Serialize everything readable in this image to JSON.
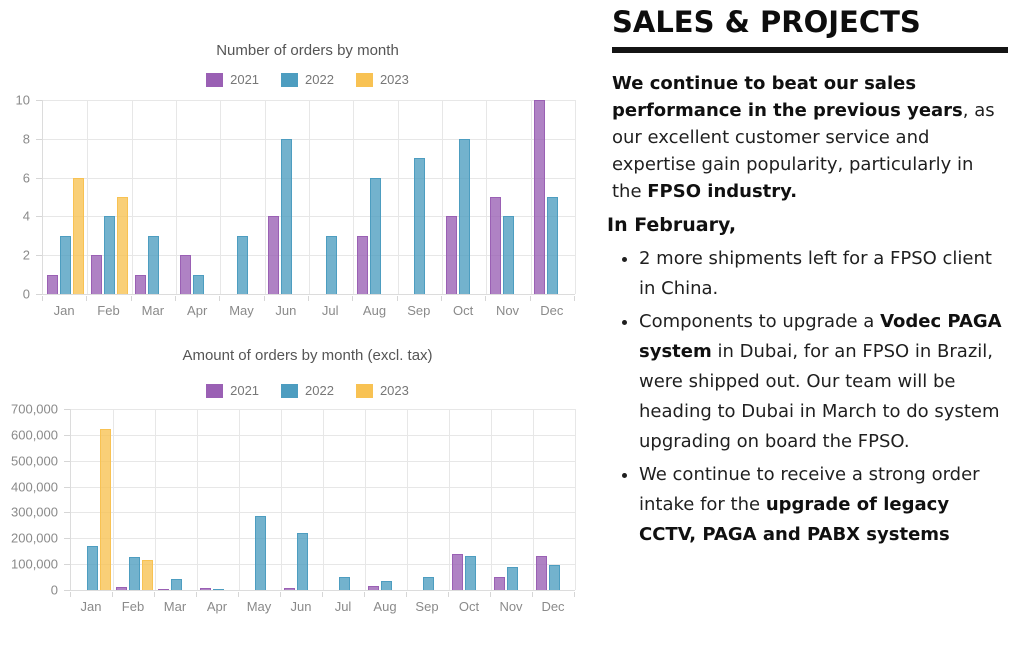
{
  "chart_data": [
    {
      "type": "bar",
      "title": "Number of orders by month",
      "categories": [
        "Jan",
        "Feb",
        "Mar",
        "Apr",
        "May",
        "Jun",
        "Jul",
        "Aug",
        "Sep",
        "Oct",
        "Nov",
        "Dec"
      ],
      "series": [
        {
          "name": "2021",
          "color": "#9a60b4",
          "values": [
            1,
            2,
            1,
            2,
            0,
            4,
            0,
            3,
            0,
            4,
            5,
            10
          ]
        },
        {
          "name": "2022",
          "color": "#4d9dc0",
          "values": [
            3,
            4,
            3,
            1,
            3,
            8,
            3,
            6,
            7,
            8,
            4,
            5
          ]
        },
        {
          "name": "2023",
          "color": "#f8c253",
          "values": [
            6,
            5,
            0,
            0,
            0,
            0,
            0,
            0,
            0,
            0,
            0,
            0
          ]
        }
      ],
      "ylim": [
        0,
        10
      ],
      "y_ticks": [
        {
          "value": 10,
          "label": "10"
        },
        {
          "value": 8,
          "label": "8"
        },
        {
          "value": 6,
          "label": "6"
        },
        {
          "value": 4,
          "label": "4"
        },
        {
          "value": 2,
          "label": "2"
        },
        {
          "value": 0,
          "label": "0"
        }
      ],
      "grid": true,
      "legend_position": "top"
    },
    {
      "type": "bar",
      "title": "Amount of orders by month (excl. tax)",
      "categories": [
        "Jan",
        "Feb",
        "Mar",
        "Apr",
        "May",
        "Jun",
        "Jul",
        "Aug",
        "Sep",
        "Oct",
        "Nov",
        "Dec"
      ],
      "series": [
        {
          "name": "2021",
          "color": "#9a60b4",
          "values": [
            0,
            10000,
            3000,
            9000,
            0,
            8000,
            0,
            14000,
            0,
            140000,
            52000,
            130000
          ]
        },
        {
          "name": "2022",
          "color": "#4d9dc0",
          "values": [
            170000,
            127000,
            43000,
            2000,
            287000,
            222000,
            52000,
            34000,
            52000,
            130000,
            88000,
            95000
          ]
        },
        {
          "name": "2023",
          "color": "#f8c253",
          "values": [
            622000,
            117000,
            0,
            0,
            0,
            0,
            0,
            0,
            0,
            0,
            0,
            0
          ]
        }
      ],
      "ylim": [
        0,
        700000
      ],
      "y_ticks": [
        {
          "value": 700000,
          "label": "700,000"
        },
        {
          "value": 600000,
          "label": "600,000"
        },
        {
          "value": 500000,
          "label": "500,000"
        },
        {
          "value": 400000,
          "label": "400,000"
        },
        {
          "value": 300000,
          "label": "300,000"
        },
        {
          "value": 200000,
          "label": "200,000"
        },
        {
          "value": 100000,
          "label": "100,000"
        },
        {
          "value": 0,
          "label": "0"
        }
      ],
      "grid": true,
      "legend_position": "top"
    }
  ],
  "panel": {
    "title": "SALES & PROJECTS",
    "accent_color": "#141414",
    "intro": [
      {
        "text": "We continue to beat our sales performance in the previous years",
        "bold": true
      },
      {
        "text": ", as our excellent customer service and expertise gain popularity, particularly in the ",
        "bold": false
      },
      {
        "text": "FPSO industry.",
        "bold": true
      }
    ],
    "subheading": "In February,",
    "bullets": [
      [
        {
          "text": "2 more shipments left for a FPSO client in China.",
          "bold": false
        }
      ],
      [
        {
          "text": "Components to upgrade a ",
          "bold": false
        },
        {
          "text": "Vodec PAGA system",
          "bold": true
        },
        {
          "text": " in Dubai, for an FPSO in Brazil, were shipped out. Our team will be heading to Dubai in March to do system upgrading on board the FPSO.",
          "bold": false
        }
      ],
      [
        {
          "text": "We continue to receive a strong order intake for the ",
          "bold": false
        },
        {
          "text": "upgrade of legacy CCTV, PAGA and PABX systems",
          "bold": true
        }
      ]
    ]
  }
}
